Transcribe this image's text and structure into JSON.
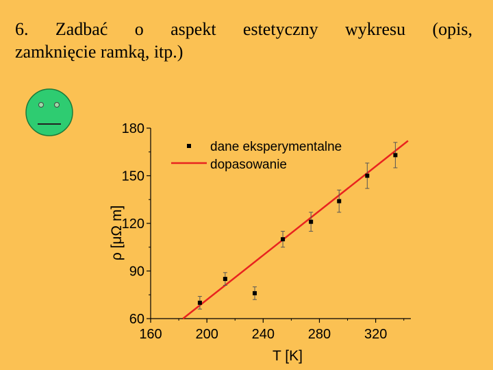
{
  "slide": {
    "title_line1": "6. Zadbać o aspekt estetyczny wykresu (opis,",
    "title_line2": "zamknięcie ramką, itp.)"
  },
  "face_icon": {
    "fill": "#2ecc71",
    "stroke": "#1b7a3a",
    "expression": "neutral"
  },
  "chart_data": {
    "type": "scatter",
    "xlabel": "T [K]",
    "ylabel": "ρ [μΩ m]",
    "xlim": [
      160,
      345
    ],
    "ylim": [
      60,
      180
    ],
    "xticks": [
      160,
      200,
      240,
      280,
      320
    ],
    "yticks": [
      60,
      90,
      120,
      150,
      180
    ],
    "grid": false,
    "legend_position": "top-left",
    "series": [
      {
        "name": "dane eksperymentalne",
        "kind": "points",
        "color": "#000000",
        "points": [
          {
            "x": 195,
            "y": 70,
            "err": 4
          },
          {
            "x": 213,
            "y": 85,
            "err": 4
          },
          {
            "x": 234,
            "y": 76,
            "err": 4
          },
          {
            "x": 254,
            "y": 110,
            "err": 5
          },
          {
            "x": 274,
            "y": 121,
            "err": 6
          },
          {
            "x": 294,
            "y": 134,
            "err": 7
          },
          {
            "x": 314,
            "y": 150,
            "err": 8
          },
          {
            "x": 334,
            "y": 163,
            "err": 8
          }
        ]
      },
      {
        "name": "dopasowanie",
        "kind": "line",
        "color": "#e8231f",
        "x": [
          183,
          343
        ],
        "y": [
          60,
          172
        ]
      }
    ]
  }
}
